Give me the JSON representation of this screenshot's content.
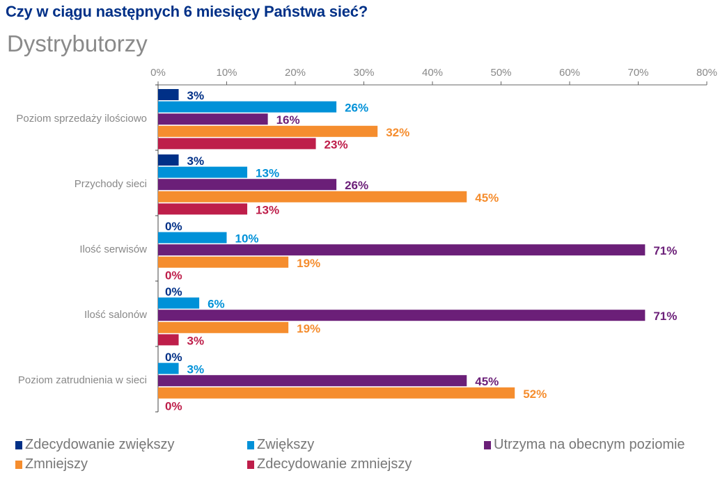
{
  "title": "Czy w ciągu następnych 6 miesięcy Państwa sieć?",
  "subtitle": "Dystrybutorzy",
  "chart_data": {
    "type": "bar",
    "orientation": "horizontal",
    "categories": [
      "Poziom sprzedaży ilościowo",
      "Przychody sieci",
      "Ilość serwisów",
      "Ilość salonów",
      "Poziom zatrudnienia w sieci"
    ],
    "series": [
      {
        "name": "Zdecydowanie zwiększy",
        "color": "#003087",
        "values": [
          3,
          3,
          0,
          0,
          0
        ]
      },
      {
        "name": "Zwiększy",
        "color": "#0091d8",
        "values": [
          26,
          13,
          10,
          6,
          3
        ]
      },
      {
        "name": "Utrzyma na obecnym poziomie",
        "color": "#6b1f78",
        "values": [
          16,
          26,
          71,
          71,
          45
        ]
      },
      {
        "name": "Zmniejszy",
        "color": "#f58d2e",
        "values": [
          32,
          45,
          19,
          19,
          52
        ]
      },
      {
        "name": "Zdecydowanie zmniejszy",
        "color": "#be1e4a",
        "values": [
          23,
          13,
          0,
          3,
          0
        ]
      }
    ],
    "xlim": [
      0,
      80
    ],
    "xticks": [
      "0%",
      "10%",
      "20%",
      "30%",
      "40%",
      "50%",
      "60%",
      "70%",
      "80%"
    ],
    "value_suffix": "%",
    "axis_position": "top",
    "grid": false,
    "legend_position": "bottom"
  }
}
